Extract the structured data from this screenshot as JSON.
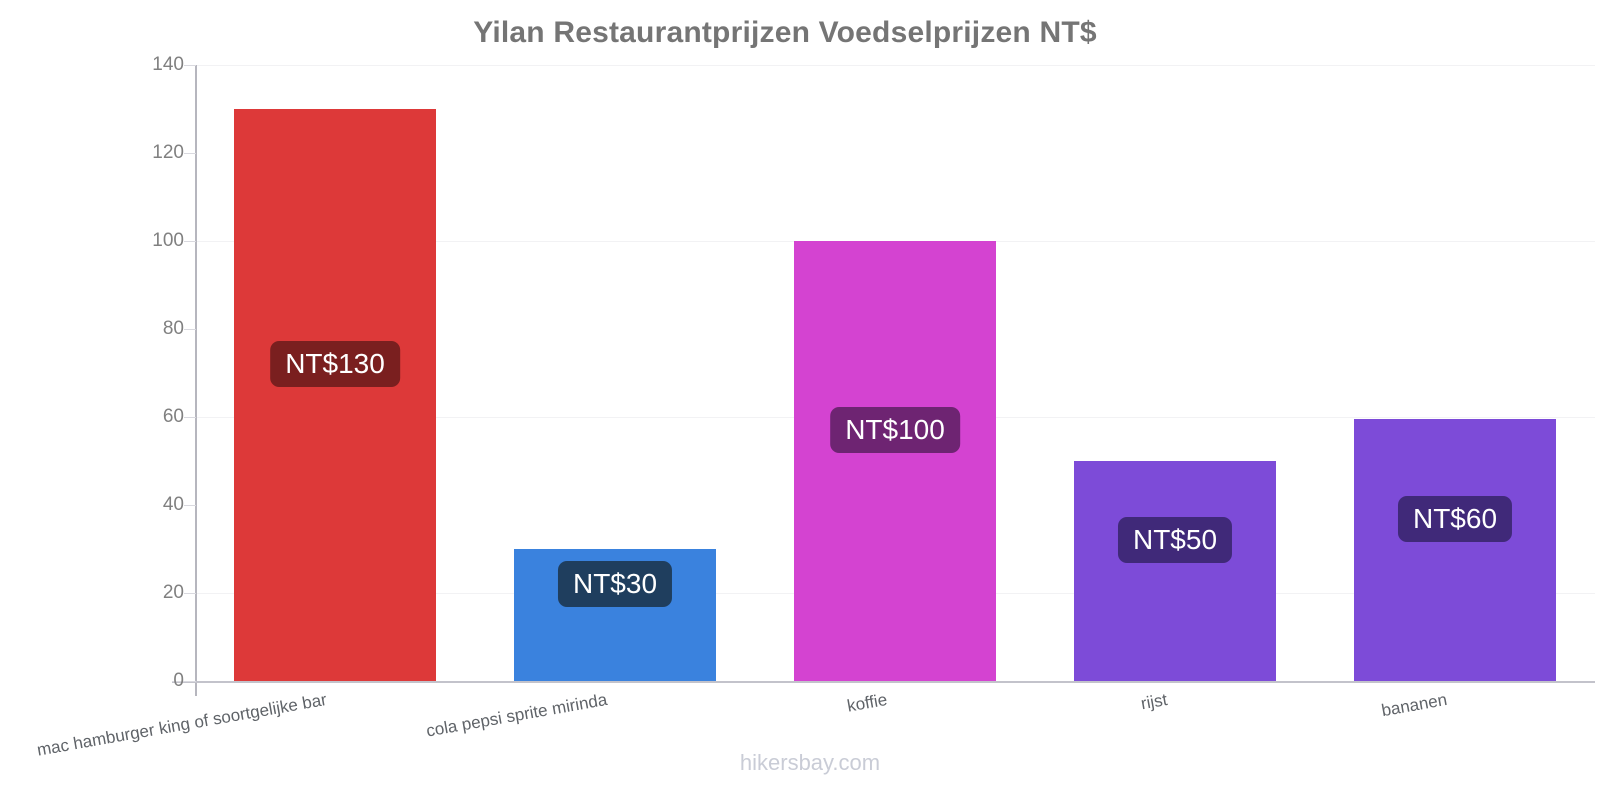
{
  "page": {
    "title": "Yilan Restaurantprijzen Voedselprijzen NT$",
    "footer_link": "hikersbay.com"
  },
  "chart_data": {
    "type": "bar",
    "title": "Yilan Restaurantprijzen Voedselprijzen NT$",
    "categories": [
      "mac hamburger king of soortgelijke bar",
      "cola pepsi sprite mirinda",
      "koffie",
      "rijst",
      "bananen"
    ],
    "values": [
      130,
      30,
      100,
      50,
      59.5
    ],
    "data_labels": [
      "NT$130",
      "NT$30",
      "NT$100",
      "NT$50",
      "NT$60"
    ],
    "bar_colors": [
      "#DD3939",
      "#3A82DE",
      "#D443D1",
      "#7D4BD8",
      "#7D4BD8"
    ],
    "badge_colors": [
      "#7A1F1F",
      "#1F3E5E",
      "#6E2472",
      "#402979",
      "#402979"
    ],
    "currency": "NT$",
    "xlabel": "",
    "ylabel": "",
    "ylim": [
      0,
      140
    ],
    "yticks": [
      0,
      20,
      40,
      60,
      80,
      100,
      120,
      140
    ],
    "gridlines_at": [
      20,
      60,
      100,
      140
    ],
    "legend": "none",
    "grid": true
  }
}
